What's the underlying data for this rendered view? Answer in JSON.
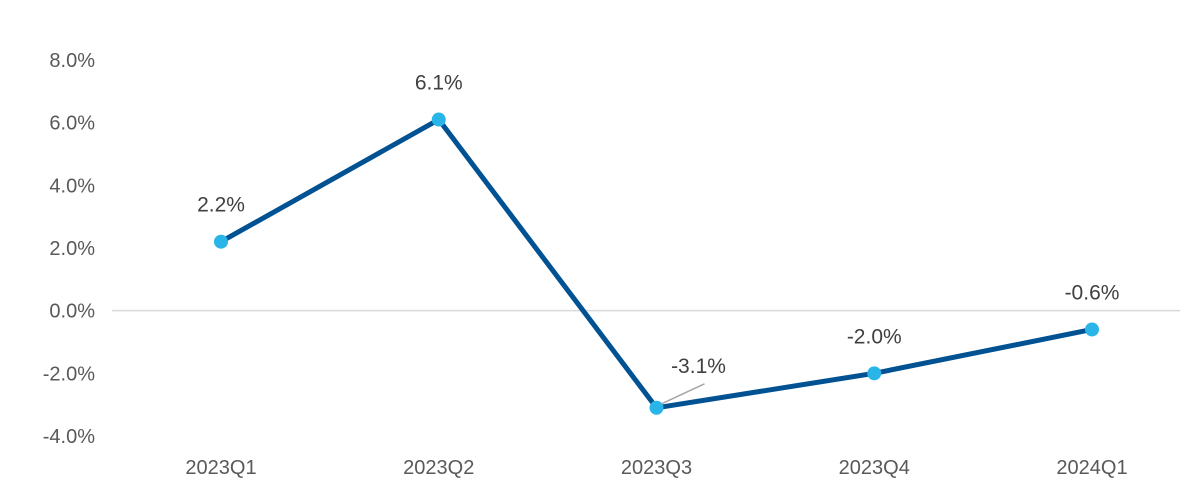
{
  "chart_data": {
    "type": "line",
    "categories": [
      "2023Q1",
      "2023Q2",
      "2023Q3",
      "2023Q4",
      "2024Q1"
    ],
    "series": [
      {
        "values": [
          2.2,
          6.1,
          -3.1,
          -2.0,
          -0.6
        ],
        "data_labels": [
          "2.2%",
          "6.1%",
          "-3.1%",
          "-2.0%",
          "-0.6%"
        ]
      }
    ],
    "ylim": [
      -4.0,
      8.0
    ],
    "yticks": [
      8.0,
      6.0,
      4.0,
      2.0,
      0.0,
      -2.0,
      -4.0
    ],
    "ytick_labels": [
      "8.0%",
      "6.0%",
      "4.0%",
      "2.0%",
      "0.0%",
      "-2.0%",
      "-4.0%"
    ],
    "title": "",
    "xlabel": "",
    "ylabel": "",
    "grid": false,
    "legend": "none",
    "zero_line": true,
    "colors": {
      "line": "#005293",
      "marker": "#29B5E8",
      "zero_line": "#D9D9D9",
      "leader_line": "#A6A6A6",
      "tick_text": "#595959",
      "label_text": "#404040"
    }
  }
}
